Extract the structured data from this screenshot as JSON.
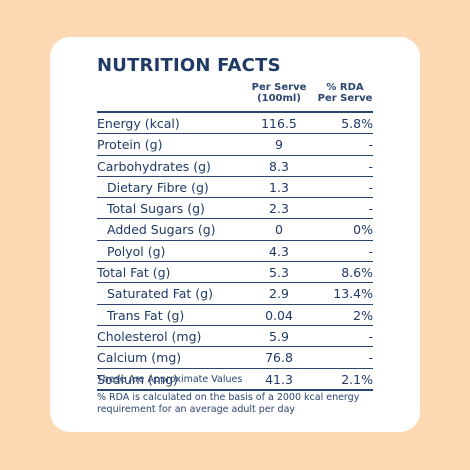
{
  "title": "NUTRITION FACTS",
  "headers": {
    "per_serve": "Per Serve (100ml)",
    "rda": "% RDA Per Serve"
  },
  "rows": [
    {
      "name": "Energy (kcal)",
      "serve": "116.5",
      "rda": "5.8%",
      "sub": false
    },
    {
      "name": "Protein (g)",
      "serve": "9",
      "rda": "-",
      "sub": false
    },
    {
      "name": "Carbohydrates (g)",
      "serve": "8.3",
      "rda": "-",
      "sub": false
    },
    {
      "name": "Dietary Fibre (g)",
      "serve": "1.3",
      "rda": "-",
      "sub": true
    },
    {
      "name": "Total Sugars (g)",
      "serve": "2.3",
      "rda": "-",
      "sub": true
    },
    {
      "name": "Added Sugars (g)",
      "serve": "0",
      "rda": "0%",
      "sub": true
    },
    {
      "name": "Polyol (g)",
      "serve": "4.3",
      "rda": "-",
      "sub": true
    },
    {
      "name": "Total Fat (g)",
      "serve": "5.3",
      "rda": "8.6%",
      "sub": false
    },
    {
      "name": "Saturated Fat (g)",
      "serve": "2.9",
      "rda": "13.4%",
      "sub": true
    },
    {
      "name": "Trans Fat (g)",
      "serve": "0.04",
      "rda": "2%",
      "sub": true
    },
    {
      "name": "Cholesterol (mg)",
      "serve": "5.9",
      "rda": "-",
      "sub": false
    },
    {
      "name": "Calcium (mg)",
      "serve": "76.8",
      "rda": "-",
      "sub": false
    },
    {
      "name": "Sodium (mg)",
      "serve": "41.3",
      "rda": "2.1%",
      "sub": false
    }
  ],
  "notes": {
    "approx": "These Are Approximate Values",
    "rda": "% RDA is calculated on the basis of a 2000 kcal energy requirement for an average adult per day"
  },
  "colors": {
    "background": "#fcd9b3",
    "card": "#ffffff",
    "text": "#1f3a66"
  }
}
